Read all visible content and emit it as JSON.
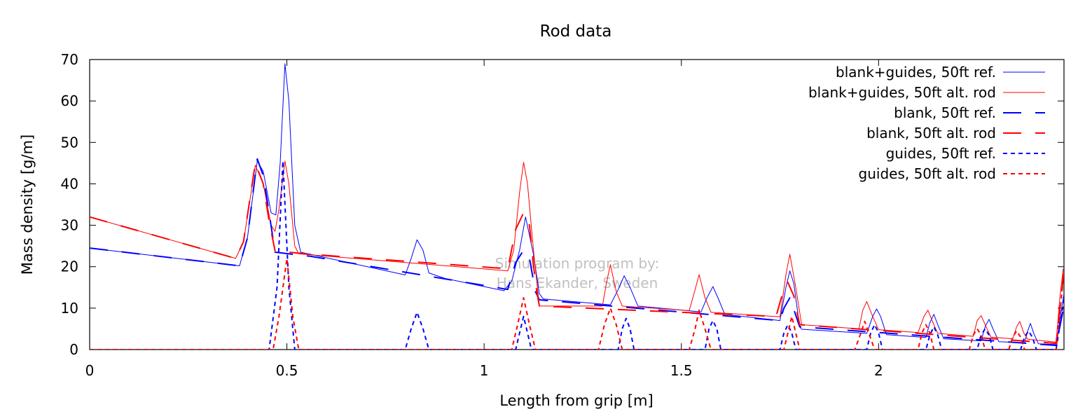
{
  "chart_data": {
    "type": "line",
    "title": "Rod data",
    "xlabel": "Length from grip [m]",
    "ylabel": "Mass density [g/m]",
    "xlim": [
      0,
      2.47
    ],
    "ylim": [
      0,
      70
    ],
    "xticks": [
      0,
      0.5,
      1,
      1.5,
      2
    ],
    "xtick_labels": [
      "0",
      "0.5",
      "1",
      "1.5",
      "2"
    ],
    "yticks": [
      0,
      10,
      20,
      30,
      40,
      50,
      60,
      70
    ],
    "ytick_labels": [
      "0",
      "10",
      "20",
      "30",
      "40",
      "50",
      "60",
      "70"
    ],
    "grid": false,
    "legend_position": "top-right",
    "watermark": [
      "Simulation program by:",
      "Hans Ekander, Sweden"
    ],
    "series": [
      {
        "name": "blank+guides, 50ft ref.",
        "color": "#0000ff",
        "dash": "solid",
        "width": 1,
        "points": [
          [
            0,
            24.5
          ],
          [
            0.38,
            20.2
          ],
          [
            0.4,
            27
          ],
          [
            0.425,
            45.5
          ],
          [
            0.44,
            43
          ],
          [
            0.46,
            33
          ],
          [
            0.472,
            32.5
          ],
          [
            0.483,
            45
          ],
          [
            0.495,
            69
          ],
          [
            0.505,
            60
          ],
          [
            0.52,
            30
          ],
          [
            0.535,
            23.5
          ],
          [
            0.8,
            18
          ],
          [
            0.815,
            22
          ],
          [
            0.83,
            26.5
          ],
          [
            0.845,
            24
          ],
          [
            0.86,
            18.5
          ],
          [
            0.9,
            17.2
          ],
          [
            1.05,
            14.2
          ],
          [
            1.07,
            16.5
          ],
          [
            1.09,
            24
          ],
          [
            1.105,
            32
          ],
          [
            1.125,
            23
          ],
          [
            1.14,
            13.5
          ],
          [
            1.15,
            12.2
          ],
          [
            1.32,
            10.8
          ],
          [
            1.34,
            14.5
          ],
          [
            1.355,
            17.8
          ],
          [
            1.37,
            15
          ],
          [
            1.39,
            10.5
          ],
          [
            1.55,
            9.1
          ],
          [
            1.565,
            12.5
          ],
          [
            1.58,
            15.2
          ],
          [
            1.595,
            12
          ],
          [
            1.61,
            8.5
          ],
          [
            1.75,
            7
          ],
          [
            1.765,
            15
          ],
          [
            1.775,
            19
          ],
          [
            1.785,
            16
          ],
          [
            1.8,
            5.5
          ],
          [
            1.805,
            4.9
          ],
          [
            1.97,
            3.9
          ],
          [
            1.985,
            8
          ],
          [
            1.995,
            9.8
          ],
          [
            2.005,
            8
          ],
          [
            2.02,
            3.6
          ],
          [
            2.12,
            2.9
          ],
          [
            2.13,
            6.5
          ],
          [
            2.14,
            8.5
          ],
          [
            2.15,
            6
          ],
          [
            2.165,
            2.6
          ],
          [
            2.26,
            2.1
          ],
          [
            2.27,
            5.5
          ],
          [
            2.28,
            7.3
          ],
          [
            2.29,
            5
          ],
          [
            2.305,
            1.9
          ],
          [
            2.37,
            1.6
          ],
          [
            2.378,
            4.5
          ],
          [
            2.385,
            6.3
          ],
          [
            2.393,
            4
          ],
          [
            2.405,
            1.4
          ],
          [
            2.45,
            1.2
          ],
          [
            2.47,
            13.5
          ]
        ]
      },
      {
        "name": "blank+guides, 50ft alt. rod",
        "color": "#ff0000",
        "dash": "solid",
        "width": 1,
        "points": [
          [
            0,
            32
          ],
          [
            0.37,
            22
          ],
          [
            0.39,
            26
          ],
          [
            0.42,
            44.5
          ],
          [
            0.44,
            40
          ],
          [
            0.46,
            30
          ],
          [
            0.47,
            28.5
          ],
          [
            0.48,
            34
          ],
          [
            0.495,
            45.5
          ],
          [
            0.505,
            40
          ],
          [
            0.52,
            25
          ],
          [
            0.53,
            23.1
          ],
          [
            1.06,
            19
          ],
          [
            1.075,
            24
          ],
          [
            1.09,
            38
          ],
          [
            1.1,
            45.2
          ],
          [
            1.11,
            40
          ],
          [
            1.125,
            24
          ],
          [
            1.14,
            10.5
          ],
          [
            1.3,
            10.5
          ],
          [
            1.31,
            16
          ],
          [
            1.32,
            20.5
          ],
          [
            1.335,
            14
          ],
          [
            1.35,
            10.5
          ],
          [
            1.52,
            9.4
          ],
          [
            1.535,
            14.5
          ],
          [
            1.545,
            18.1
          ],
          [
            1.56,
            12.5
          ],
          [
            1.575,
            9
          ],
          [
            1.75,
            7.9
          ],
          [
            1.765,
            18
          ],
          [
            1.775,
            23
          ],
          [
            1.79,
            15
          ],
          [
            1.805,
            6
          ],
          [
            1.95,
            5
          ],
          [
            1.96,
            9.5
          ],
          [
            1.97,
            11.6
          ],
          [
            1.985,
            8
          ],
          [
            2.0,
            4.8
          ],
          [
            2.1,
            4.1
          ],
          [
            2.115,
            8
          ],
          [
            2.125,
            9.5
          ],
          [
            2.14,
            6
          ],
          [
            2.15,
            3.9
          ],
          [
            2.24,
            3.2
          ],
          [
            2.25,
            7
          ],
          [
            2.26,
            8.2
          ],
          [
            2.275,
            5
          ],
          [
            2.285,
            3
          ],
          [
            2.34,
            2.6
          ],
          [
            2.35,
            5.5
          ],
          [
            2.358,
            6.8
          ],
          [
            2.368,
            4
          ],
          [
            2.378,
            2.5
          ],
          [
            2.45,
            1.8
          ],
          [
            2.46,
            13
          ],
          [
            2.468,
            19.5
          ]
        ]
      },
      {
        "name": "blank, 50ft ref.",
        "color": "#0000ff",
        "dash": "26,20",
        "width": 2,
        "points": [
          [
            0,
            24.5
          ],
          [
            0.38,
            20.2
          ],
          [
            0.4,
            27
          ],
          [
            0.425,
            46
          ],
          [
            0.44,
            42
          ],
          [
            0.455,
            33
          ],
          [
            0.47,
            23.5
          ],
          [
            0.56,
            22.5
          ],
          [
            1.06,
            14.5
          ],
          [
            1.08,
            21
          ],
          [
            1.1,
            24
          ],
          [
            1.115,
            22
          ],
          [
            1.13,
            14
          ],
          [
            1.14,
            12
          ],
          [
            1.75,
            7
          ],
          [
            1.76,
            10
          ],
          [
            1.775,
            12.5
          ],
          [
            1.8,
            5.5
          ],
          [
            2.45,
            1
          ],
          [
            2.47,
            10.5
          ]
        ]
      },
      {
        "name": "blank, 50ft alt. rod",
        "color": "#ff0000",
        "dash": "26,20",
        "width": 2,
        "points": [
          [
            0,
            32
          ],
          [
            0.37,
            22
          ],
          [
            0.39,
            26
          ],
          [
            0.42,
            45
          ],
          [
            0.44,
            40
          ],
          [
            0.455,
            31
          ],
          [
            0.47,
            23.8
          ],
          [
            0.56,
            23
          ],
          [
            1.06,
            19.5
          ],
          [
            1.08,
            29
          ],
          [
            1.1,
            33
          ],
          [
            1.115,
            30
          ],
          [
            1.13,
            16
          ],
          [
            1.14,
            10.5
          ],
          [
            1.74,
            8
          ],
          [
            1.755,
            13
          ],
          [
            1.77,
            16.2
          ],
          [
            1.785,
            13
          ],
          [
            1.8,
            6
          ],
          [
            2.45,
            1.5
          ],
          [
            2.47,
            19
          ]
        ]
      },
      {
        "name": "guides, 50ft ref.",
        "color": "#0000ff",
        "dash": "6,5",
        "width": 2,
        "points": [
          [
            0,
            0
          ],
          [
            0.455,
            0
          ],
          [
            0.475,
            15
          ],
          [
            0.49,
            45.5
          ],
          [
            0.505,
            15
          ],
          [
            0.52,
            0
          ],
          [
            0.8,
            0
          ],
          [
            0.815,
            5
          ],
          [
            0.83,
            9
          ],
          [
            0.845,
            5
          ],
          [
            0.86,
            0
          ],
          [
            1.08,
            0
          ],
          [
            1.09,
            4
          ],
          [
            1.1,
            8
          ],
          [
            1.11,
            4
          ],
          [
            1.12,
            0
          ],
          [
            1.34,
            0
          ],
          [
            1.35,
            5
          ],
          [
            1.36,
            7.5
          ],
          [
            1.37,
            5
          ],
          [
            1.38,
            0
          ],
          [
            1.56,
            0
          ],
          [
            1.57,
            5
          ],
          [
            1.58,
            7
          ],
          [
            1.59,
            5
          ],
          [
            1.6,
            0
          ],
          [
            1.75,
            0
          ],
          [
            1.76,
            4
          ],
          [
            1.77,
            6
          ],
          [
            1.78,
            4
          ],
          [
            1.79,
            0
          ],
          [
            1.97,
            0
          ],
          [
            1.98,
            4
          ],
          [
            1.99,
            6
          ],
          [
            2.0,
            4
          ],
          [
            2.01,
            0
          ],
          [
            2.12,
            0
          ],
          [
            2.13,
            3.5
          ],
          [
            2.14,
            5.5
          ],
          [
            2.15,
            3.5
          ],
          [
            2.16,
            0
          ],
          [
            2.25,
            0
          ],
          [
            2.26,
            3.5
          ],
          [
            2.27,
            5
          ],
          [
            2.28,
            3.5
          ],
          [
            2.29,
            0
          ],
          [
            2.36,
            0
          ],
          [
            2.37,
            3
          ],
          [
            2.38,
            4.5
          ],
          [
            2.39,
            3
          ],
          [
            2.4,
            0
          ],
          [
            2.45,
            0
          ],
          [
            2.47,
            12
          ]
        ]
      },
      {
        "name": "guides, 50ft alt. rod",
        "color": "#ff0000",
        "dash": "6,5",
        "width": 2,
        "points": [
          [
            0,
            0
          ],
          [
            0.465,
            0
          ],
          [
            0.48,
            8
          ],
          [
            0.5,
            22
          ],
          [
            0.515,
            8
          ],
          [
            0.53,
            0
          ],
          [
            1.07,
            0
          ],
          [
            1.085,
            6
          ],
          [
            1.1,
            12.5
          ],
          [
            1.115,
            6
          ],
          [
            1.13,
            0
          ],
          [
            1.29,
            0
          ],
          [
            1.305,
            6
          ],
          [
            1.32,
            10
          ],
          [
            1.335,
            6
          ],
          [
            1.35,
            0
          ],
          [
            1.52,
            0
          ],
          [
            1.535,
            5
          ],
          [
            1.545,
            9.5
          ],
          [
            1.56,
            5
          ],
          [
            1.575,
            0
          ],
          [
            1.76,
            0
          ],
          [
            1.77,
            4
          ],
          [
            1.78,
            8
          ],
          [
            1.79,
            4
          ],
          [
            1.8,
            0
          ],
          [
            1.94,
            0
          ],
          [
            1.955,
            4
          ],
          [
            1.965,
            6.8
          ],
          [
            1.975,
            4
          ],
          [
            1.99,
            0
          ],
          [
            2.1,
            0
          ],
          [
            2.11,
            4
          ],
          [
            2.12,
            6
          ],
          [
            2.13,
            4
          ],
          [
            2.14,
            0
          ],
          [
            2.23,
            0
          ],
          [
            2.24,
            3.5
          ],
          [
            2.25,
            5
          ],
          [
            2.26,
            3.5
          ],
          [
            2.27,
            0
          ],
          [
            2.33,
            0
          ],
          [
            2.34,
            3
          ],
          [
            2.35,
            4.5
          ],
          [
            2.36,
            3
          ],
          [
            2.37,
            0
          ],
          [
            2.45,
            0
          ],
          [
            2.468,
            17
          ]
        ]
      }
    ]
  }
}
